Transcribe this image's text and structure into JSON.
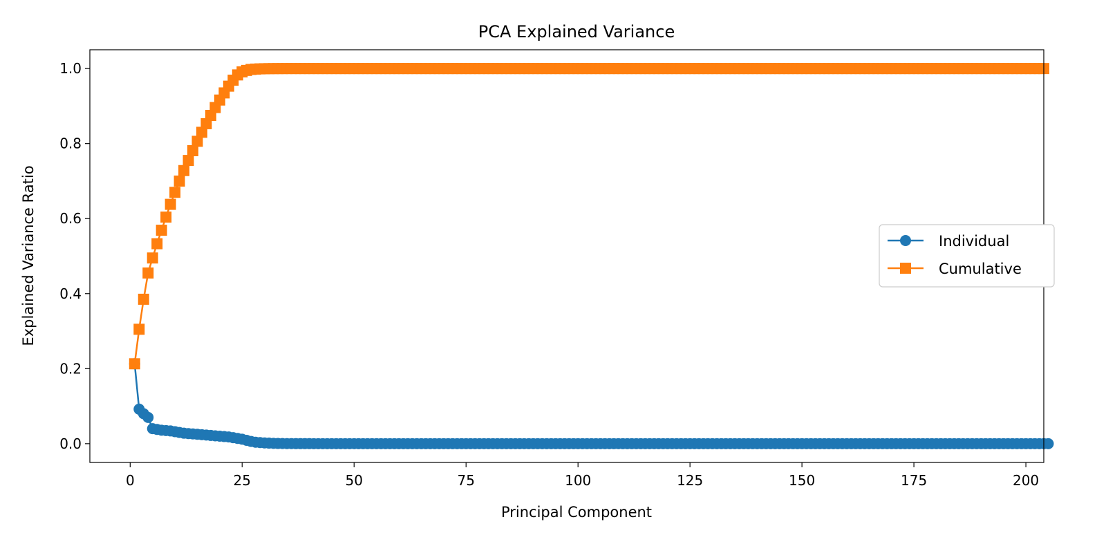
{
  "chart_data": {
    "type": "line",
    "title": "PCA Explained Variance",
    "xlabel": "Principal Component",
    "ylabel": "Explained Variance Ratio",
    "xlim": [
      -9,
      204
    ],
    "ylim": [
      -0.05,
      1.05
    ],
    "xticks": [
      0,
      25,
      50,
      75,
      100,
      125,
      150,
      175,
      200
    ],
    "yticks": [
      0.0,
      0.2,
      0.4,
      0.6,
      0.8,
      1.0
    ],
    "xtick_labels": [
      "0",
      "25",
      "50",
      "75",
      "100",
      "125",
      "150",
      "175",
      "200"
    ],
    "ytick_labels": [
      "0.0",
      "0.2",
      "0.4",
      "0.6",
      "0.8",
      "1.0"
    ],
    "grid": false,
    "legend_position": "center-right",
    "series": [
      {
        "name": "Individual",
        "color": "#1f77b4",
        "marker": "circle",
        "x_start": 1,
        "values": [
          0.213,
          0.092,
          0.08,
          0.07,
          0.04,
          0.038,
          0.036,
          0.035,
          0.034,
          0.032,
          0.03,
          0.028,
          0.027,
          0.026,
          0.025,
          0.024,
          0.023,
          0.022,
          0.021,
          0.02,
          0.019,
          0.018,
          0.016,
          0.014,
          0.012,
          0.009,
          0.006,
          0.004,
          0.003,
          0.002,
          0.0015,
          0.001,
          0.0006,
          0.0004,
          0.0003,
          0.0002,
          0.0001,
          0.0001,
          0.0001,
          0.0001,
          0.0,
          0.0,
          0.0,
          0.0,
          0.0,
          0.0,
          0.0,
          0.0,
          0.0,
          0.0,
          0.0,
          0.0,
          0.0,
          0.0,
          0.0,
          0.0,
          0.0,
          0.0,
          0.0,
          0.0,
          0.0,
          0.0,
          0.0,
          0.0,
          0.0,
          0.0,
          0.0,
          0.0,
          0.0,
          0.0,
          0.0,
          0.0,
          0.0,
          0.0,
          0.0,
          0.0,
          0.0,
          0.0,
          0.0,
          0.0,
          0.0,
          0.0,
          0.0,
          0.0,
          0.0,
          0.0,
          0.0,
          0.0,
          0.0,
          0.0,
          0.0,
          0.0,
          0.0,
          0.0,
          0.0,
          0.0,
          0.0,
          0.0,
          0.0,
          0.0,
          0.0,
          0.0,
          0.0,
          0.0,
          0.0,
          0.0,
          0.0,
          0.0,
          0.0,
          0.0,
          0.0,
          0.0,
          0.0,
          0.0,
          0.0,
          0.0,
          0.0,
          0.0,
          0.0,
          0.0,
          0.0,
          0.0,
          0.0,
          0.0,
          0.0,
          0.0,
          0.0,
          0.0,
          0.0,
          0.0,
          0.0,
          0.0,
          0.0,
          0.0,
          0.0,
          0.0,
          0.0,
          0.0,
          0.0,
          0.0,
          0.0,
          0.0,
          0.0,
          0.0,
          0.0,
          0.0,
          0.0,
          0.0,
          0.0,
          0.0,
          0.0,
          0.0,
          0.0,
          0.0,
          0.0,
          0.0,
          0.0,
          0.0,
          0.0,
          0.0,
          0.0,
          0.0,
          0.0,
          0.0,
          0.0,
          0.0,
          0.0,
          0.0,
          0.0,
          0.0,
          0.0,
          0.0,
          0.0,
          0.0,
          0.0,
          0.0,
          0.0,
          0.0,
          0.0,
          0.0,
          0.0,
          0.0,
          0.0,
          0.0,
          0.0,
          0.0,
          0.0,
          0.0,
          0.0,
          0.0,
          0.0,
          0.0,
          0.0,
          0.0,
          0.0,
          0.0,
          0.0,
          0.0,
          0.0,
          0.0,
          0.0,
          0.0,
          0.0,
          0.0,
          0.0
        ]
      },
      {
        "name": "Cumulative",
        "color": "#ff7f0e",
        "marker": "square",
        "x_start": 1,
        "values": [
          0.213,
          0.305,
          0.385,
          0.455,
          0.495,
          0.533,
          0.569,
          0.604,
          0.638,
          0.67,
          0.7,
          0.728,
          0.755,
          0.781,
          0.806,
          0.83,
          0.853,
          0.875,
          0.896,
          0.916,
          0.935,
          0.953,
          0.969,
          0.983,
          0.991,
          0.995,
          0.9975,
          0.9985,
          0.9991,
          0.9995,
          0.9997,
          0.9998,
          0.9999,
          0.9999,
          1.0,
          1.0,
          1.0,
          1.0,
          1.0,
          1.0,
          1.0,
          1.0,
          1.0,
          1.0,
          1.0,
          1.0,
          1.0,
          1.0,
          1.0,
          1.0,
          1.0,
          1.0,
          1.0,
          1.0,
          1.0,
          1.0,
          1.0,
          1.0,
          1.0,
          1.0,
          1.0,
          1.0,
          1.0,
          1.0,
          1.0,
          1.0,
          1.0,
          1.0,
          1.0,
          1.0,
          1.0,
          1.0,
          1.0,
          1.0,
          1.0,
          1.0,
          1.0,
          1.0,
          1.0,
          1.0,
          1.0,
          1.0,
          1.0,
          1.0,
          1.0,
          1.0,
          1.0,
          1.0,
          1.0,
          1.0,
          1.0,
          1.0,
          1.0,
          1.0,
          1.0,
          1.0,
          1.0,
          1.0,
          1.0,
          1.0,
          1.0,
          1.0,
          1.0,
          1.0,
          1.0,
          1.0,
          1.0,
          1.0,
          1.0,
          1.0,
          1.0,
          1.0,
          1.0,
          1.0,
          1.0,
          1.0,
          1.0,
          1.0,
          1.0,
          1.0,
          1.0,
          1.0,
          1.0,
          1.0,
          1.0,
          1.0,
          1.0,
          1.0,
          1.0,
          1.0,
          1.0,
          1.0,
          1.0,
          1.0,
          1.0,
          1.0,
          1.0,
          1.0,
          1.0,
          1.0,
          1.0,
          1.0,
          1.0,
          1.0,
          1.0,
          1.0,
          1.0,
          1.0,
          1.0,
          1.0,
          1.0,
          1.0,
          1.0,
          1.0,
          1.0,
          1.0,
          1.0,
          1.0,
          1.0,
          1.0,
          1.0,
          1.0,
          1.0,
          1.0,
          1.0,
          1.0,
          1.0,
          1.0,
          1.0,
          1.0,
          1.0,
          1.0,
          1.0,
          1.0,
          1.0,
          1.0,
          1.0,
          1.0,
          1.0,
          1.0,
          1.0,
          1.0,
          1.0,
          1.0,
          1.0,
          1.0,
          1.0,
          1.0,
          1.0,
          1.0,
          1.0,
          1.0,
          1.0,
          1.0,
          1.0,
          1.0,
          1.0,
          1.0,
          1.0,
          1.0,
          1.0,
          1.0,
          1.0,
          1.0
        ]
      }
    ]
  }
}
